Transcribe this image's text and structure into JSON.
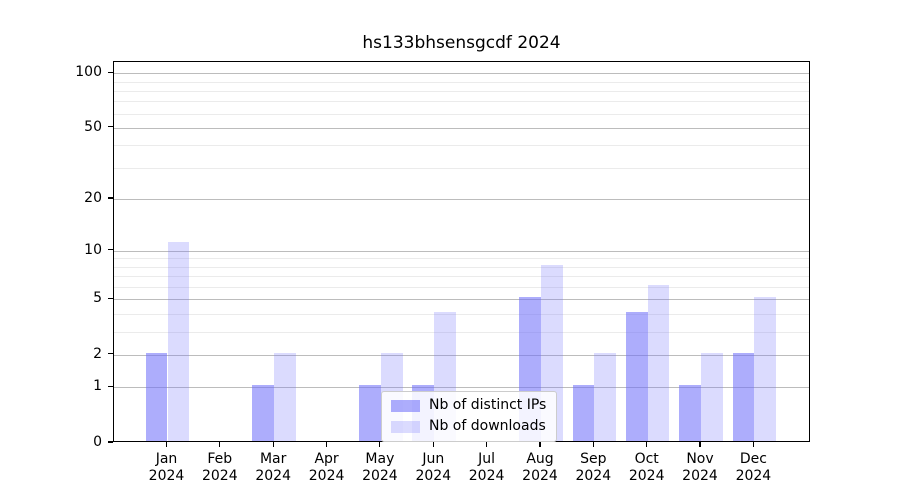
{
  "chart_data": {
    "type": "bar",
    "title": "hs133bhsensgcdf 2024",
    "x_months": [
      "Jan",
      "Feb",
      "Mar",
      "Apr",
      "May",
      "Jun",
      "Jul",
      "Aug",
      "Sep",
      "Oct",
      "Nov",
      "Dec"
    ],
    "x_year": "2024",
    "categories": [
      "Jan 2024",
      "Feb 2024",
      "Mar 2024",
      "Apr 2024",
      "May 2024",
      "Jun 2024",
      "Jul 2024",
      "Aug 2024",
      "Sep 2024",
      "Oct 2024",
      "Nov 2024",
      "Dec 2024"
    ],
    "series": [
      {
        "name": "Nb of distinct IPs",
        "color": "rgba(110,110,250,0.57)",
        "values": [
          2,
          0,
          1,
          0,
          1,
          1,
          0,
          5,
          1,
          4,
          1,
          2
        ]
      },
      {
        "name": "Nb of downloads",
        "color": "rgba(110,110,250,0.25)",
        "values": [
          11,
          0,
          2,
          0,
          2,
          4,
          0,
          8,
          2,
          6,
          2,
          5
        ]
      }
    ],
    "xlabel": "",
    "ylabel": "",
    "yscale": "log1p",
    "ylim": [
      0,
      115
    ],
    "y_major_ticks": [
      0,
      1,
      2,
      5,
      10,
      20,
      50,
      100
    ],
    "y_minor_gridlines": [
      3,
      4,
      6,
      7,
      8,
      9,
      30,
      40,
      60,
      70,
      80,
      90
    ],
    "grid": "horizontal",
    "legend_position": "inside-bottom-center",
    "colors": {
      "major_grid": "#bcbcbc",
      "minor_grid": "#ebebeb",
      "spine": "#000000",
      "background": "#ffffff"
    }
  }
}
